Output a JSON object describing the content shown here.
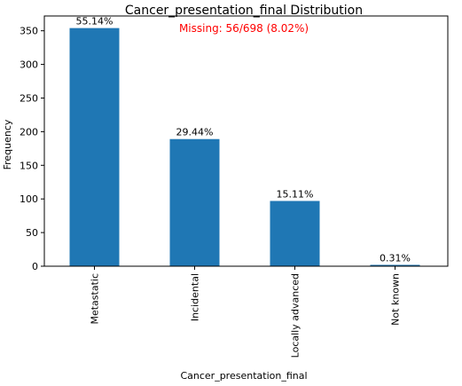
{
  "chart_data": {
    "type": "bar",
    "title": "Cancer_presentation_final Distribution",
    "annotation": "Missing: 56/698 (8.02%)",
    "xlabel": "Cancer_presentation_final",
    "ylabel": "Frequency",
    "categories": [
      "Metastatic",
      "Incidental",
      "Locally advanced",
      "Not known"
    ],
    "values": [
      354,
      189,
      97,
      2
    ],
    "bar_labels": [
      "55.14%",
      "29.44%",
      "15.11%",
      "0.31%"
    ],
    "ylim": [
      0,
      372
    ],
    "yticks": [
      0,
      50,
      100,
      150,
      200,
      250,
      300,
      350
    ],
    "grid": false,
    "colors": {
      "bar": "#1f77b4",
      "annotation": "#ff0000",
      "axis": "#000000"
    }
  }
}
